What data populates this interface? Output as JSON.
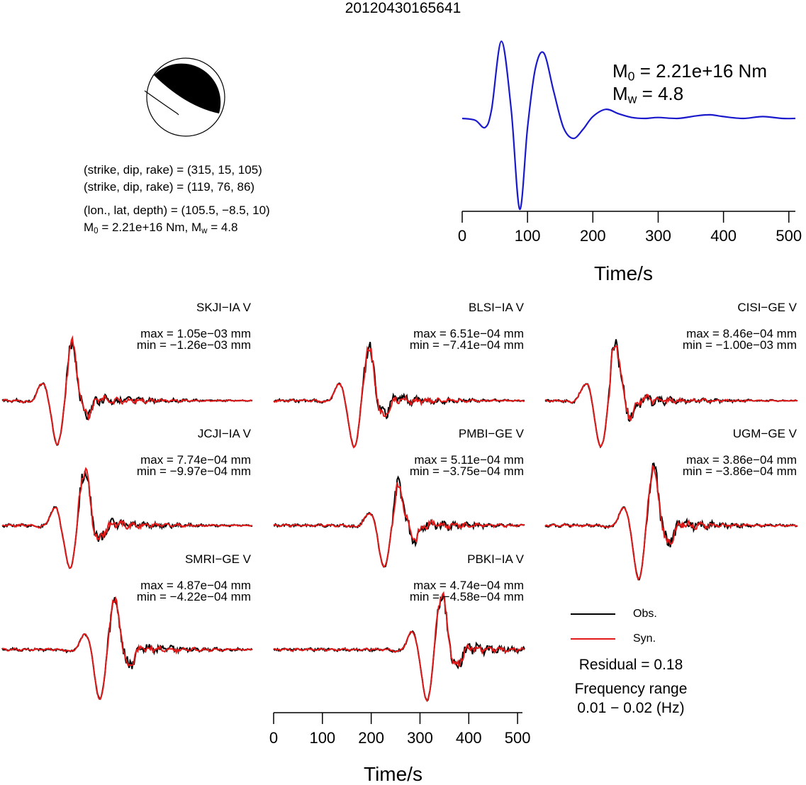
{
  "title": "20120430165641",
  "focal_mechanism": {
    "plane1": "(strike, dip, rake) = (315, 15, 105)",
    "plane2": "(strike, dip, rake) = (119, 76, 86)",
    "location": "(lon., lat, depth) = (105.5, −8.5, 10)",
    "moment_prefix": "M",
    "moment_sub": "0",
    "moment_value": " = 2.21e+16 Nm, M",
    "mw_sub": "w",
    "mw_value": " = 4.8"
  },
  "stf_label": {
    "m0_prefix": "M",
    "m0_sub": "0",
    "m0_value": " = 2.21e+16 Nm",
    "mw_prefix": "M",
    "mw_sub": "w",
    "mw_value": " = 4.8"
  },
  "axis": {
    "xlabel": "Time/s",
    "ticks": [
      "0",
      "100",
      "200",
      "300",
      "400",
      "500"
    ]
  },
  "legend": {
    "obs": "Obs.",
    "syn": "Syn.",
    "residual": "Residual = 0.18",
    "freq_title": "Frequency range",
    "freq_value": "0.01 − 0.02 (Hz)"
  },
  "colors": {
    "observed": "#000000",
    "synthetic": "#e21a1a",
    "stf": "#1a1acc"
  },
  "stations": [
    {
      "name": "SKJI−IA V",
      "max": "max = 1.05e−03 mm",
      "min": "min = −1.26e−03 mm"
    },
    {
      "name": "BLSI−IA V",
      "max": "max = 6.51e−04 mm",
      "min": "min = −7.41e−04 mm"
    },
    {
      "name": "CISI−GE V",
      "max": "max = 8.46e−04 mm",
      "min": "min = −1.00e−03 mm"
    },
    {
      "name": "JCJI−IA V",
      "max": "max = 7.74e−04 mm",
      "min": "min = −9.97e−04 mm"
    },
    {
      "name": "PMBI−GE V",
      "max": "max = 5.11e−04 mm",
      "min": "min = −3.75e−04 mm"
    },
    {
      "name": "UGM−GE V",
      "max": "max = 3.86e−04 mm",
      "min": "min = −3.86e−04 mm"
    },
    {
      "name": "SMRI−GE V",
      "max": "max = 4.87e−04 mm",
      "min": "min = −4.22e−04 mm"
    },
    {
      "name": "PBKI−IA V",
      "max": "max = 4.74e−04 mm",
      "min": "min = −4.58e−04 mm"
    }
  ],
  "chart_data": [
    {
      "type": "line",
      "name": "source-time-function",
      "xlabel": "Time/s",
      "xlim": [
        0,
        510
      ],
      "series": [
        {
          "x": [
            0,
            20,
            35,
            45,
            60,
            75,
            88,
            100,
            112,
            125,
            140,
            155,
            170,
            185,
            200,
            220,
            240,
            260,
            280,
            300,
            330,
            360,
            380,
            400,
            430,
            460,
            490,
            510
          ],
          "y": [
            0,
            -0.02,
            -0.1,
            0.1,
            0.85,
            0.1,
            -1.0,
            -0.1,
            0.55,
            0.72,
            0.3,
            -0.1,
            -0.22,
            -0.12,
            0.02,
            0.1,
            0.05,
            0.01,
            0.0,
            0.01,
            0.0,
            0.03,
            0.04,
            0.02,
            0.0,
            0.02,
            0.0,
            0.0
          ]
        }
      ]
    },
    {
      "type": "line",
      "name": "waveform-comparison",
      "xlabel": "Time/s",
      "xlim": [
        0,
        510
      ],
      "series": [
        {
          "name": "Obs."
        },
        {
          "name": "Syn."
        }
      ],
      "panels": [
        {
          "station": "SKJI−IA V",
          "max_mm": 0.00105,
          "min_mm": -0.00126
        },
        {
          "station": "BLSI−IA V",
          "max_mm": 0.000651,
          "min_mm": -0.000741
        },
        {
          "station": "CISI−GE V",
          "max_mm": 0.000846,
          "min_mm": -0.001
        },
        {
          "station": "JCJI−IA V",
          "max_mm": 0.000774,
          "min_mm": -0.000997
        },
        {
          "station": "PMBI−GE V",
          "max_mm": 0.000511,
          "min_mm": -0.000375
        },
        {
          "station": "UGM−GE V",
          "max_mm": 0.000386,
          "min_mm": -0.000386
        },
        {
          "station": "SMRI−GE V",
          "max_mm": 0.000487,
          "min_mm": -0.000422
        },
        {
          "station": "PBKI−IA V",
          "max_mm": 0.000474,
          "min_mm": -0.000458
        }
      ]
    }
  ]
}
